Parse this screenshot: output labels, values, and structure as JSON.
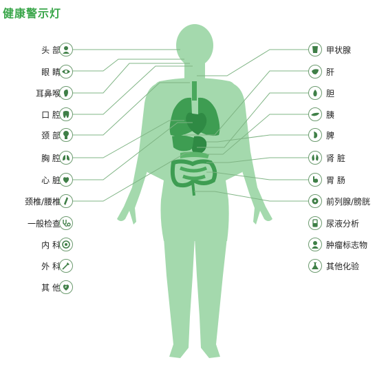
{
  "title": "健康警示灯",
  "left_items": [
    {
      "label": "头 部",
      "icon": "head-icon"
    },
    {
      "label": "眼 睛",
      "icon": "eye-icon"
    },
    {
      "label": "耳鼻喉",
      "icon": "ear-icon"
    },
    {
      "label": "口 腔",
      "icon": "tooth-icon"
    },
    {
      "label": "颈 部",
      "icon": "neck-icon"
    },
    {
      "label": "胸 腔",
      "icon": "lungs-icon"
    },
    {
      "label": "心 脏",
      "icon": "heart-icon"
    },
    {
      "label": "颈椎/腰椎",
      "icon": "spine-icon"
    },
    {
      "label": "一般检查",
      "icon": "stethoscope-icon"
    },
    {
      "label": "内 科",
      "icon": "internal-medicine-icon"
    },
    {
      "label": "外 科",
      "icon": "surgery-icon"
    },
    {
      "label": "其 他",
      "icon": "other-icon"
    }
  ],
  "right_items": [
    {
      "label": "甲状腺",
      "icon": "thyroid-icon"
    },
    {
      "label": "肝",
      "icon": "liver-icon"
    },
    {
      "label": "胆",
      "icon": "gallbladder-icon"
    },
    {
      "label": "胰",
      "icon": "pancreas-icon"
    },
    {
      "label": "脾",
      "icon": "spleen-icon"
    },
    {
      "label": "肾 脏",
      "icon": "kidney-icon"
    },
    {
      "label": "胃 肠",
      "icon": "stomach-icon"
    },
    {
      "label": "前列腺/膀胱",
      "icon": "prostate-icon"
    },
    {
      "label": "尿液分析",
      "icon": "urine-test-icon"
    },
    {
      "label": "肿瘤标志物",
      "icon": "tumor-marker-icon"
    },
    {
      "label": "其他化验",
      "icon": "lab-flask-icon"
    }
  ],
  "colors": {
    "title": "#3aa64a",
    "body": "#9fd5a8",
    "organ": "#3e9d52",
    "organ_light": "#5db56c",
    "line": "#6aa56f",
    "icon_border": "#6b9a6e",
    "icon_fill": "#3f7f47"
  }
}
